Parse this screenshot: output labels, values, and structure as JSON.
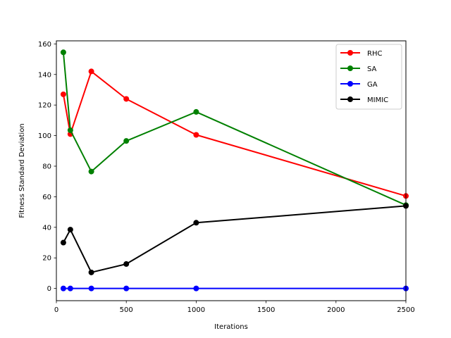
{
  "chart_data": {
    "type": "line",
    "title": "",
    "xlabel": "Iterations",
    "ylabel": "Fitness Standard Deviation",
    "xlim": [
      0,
      2500
    ],
    "ylim": [
      -8,
      162
    ],
    "x_ticks": [
      0,
      500,
      1000,
      1500,
      2000,
      2500
    ],
    "y_ticks": [
      0,
      20,
      40,
      60,
      80,
      100,
      120,
      140,
      160
    ],
    "x": [
      50,
      100,
      250,
      500,
      1000,
      2500
    ],
    "grid": false,
    "legend_position": "top-right",
    "series": [
      {
        "name": "RHC",
        "color": "#ff0000",
        "values": [
          127,
          101,
          142,
          124,
          100.5,
          60.5
        ]
      },
      {
        "name": "SA",
        "color": "#008000",
        "values": [
          154.5,
          103.5,
          76.5,
          96.5,
          115.5,
          54.5
        ]
      },
      {
        "name": "GA",
        "color": "#0000ff",
        "values": [
          0,
          0,
          0,
          0,
          0,
          0
        ]
      },
      {
        "name": "MIMIC",
        "color": "#000000",
        "values": [
          30,
          38.5,
          10.5,
          16,
          43,
          54
        ]
      }
    ]
  }
}
